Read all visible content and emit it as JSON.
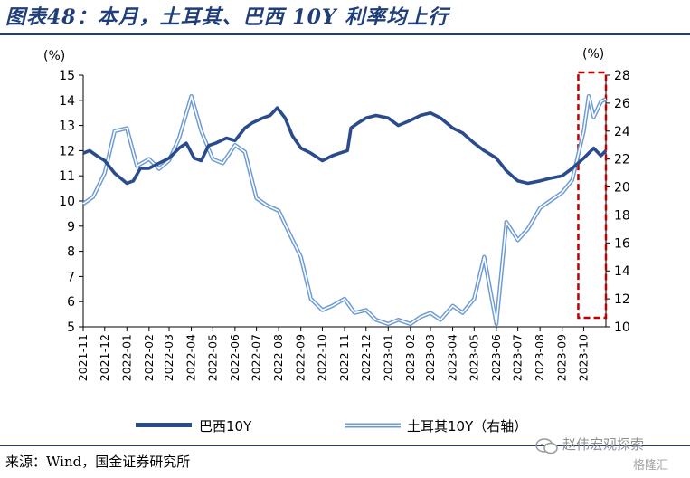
{
  "figure": {
    "title": "图表48：本月，土耳其、巴西 10Y 利率均上行",
    "source": "来源：Wind，国金证券研究所",
    "watermark": {
      "name": "赵伟宏观探索",
      "badge": "格隆汇"
    }
  },
  "colors": {
    "title": "#1f3e7a",
    "brazil": "#2a4c8c",
    "turkey_outer": "#6b9ad6",
    "turkey_inner": "#ffffff",
    "highlight_box": "#c00000",
    "axis": "#000000"
  },
  "chart_data": {
    "type": "line",
    "title": "本月，土耳其、巴西 10Y 利率均上行",
    "left_axis": {
      "unit": "(%)",
      "range": [
        5,
        15
      ],
      "ticks": [
        5,
        6,
        7,
        8,
        9,
        10,
        11,
        12,
        13,
        14,
        15
      ]
    },
    "right_axis": {
      "unit": "(%)",
      "range": [
        10,
        28
      ],
      "ticks": [
        10,
        12,
        14,
        16,
        18,
        20,
        22,
        24,
        26,
        28
      ]
    },
    "x_axis": {
      "ticks": [
        "2021-11",
        "2021-12",
        "2022-01",
        "2022-02",
        "2022-03",
        "2022-04",
        "2022-05",
        "2022-06",
        "2022-07",
        "2022-08",
        "2022-09",
        "2022-10",
        "2022-11",
        "2022-12",
        "2023-01",
        "2023-02",
        "2023-03",
        "2023-04",
        "2023-05",
        "2023-06",
        "2023-07",
        "2023-08",
        "2023-09",
        "2023-10"
      ]
    },
    "legend_position": "bottom",
    "grid": false,
    "highlight": {
      "from": "2023-10",
      "to": "2023-11",
      "style": "red dashed box"
    },
    "series": [
      {
        "name": "巴西10Y",
        "axis": "left",
        "style": "thick solid dark blue",
        "points": [
          [
            "2021-11-01",
            11.9
          ],
          [
            "2021-11-10",
            12.0
          ],
          [
            "2021-11-20",
            11.8
          ],
          [
            "2021-12-01",
            11.6
          ],
          [
            "2021-12-15",
            11.1
          ],
          [
            "2022-01-01",
            10.7
          ],
          [
            "2022-01-10",
            10.8
          ],
          [
            "2022-01-20",
            11.3
          ],
          [
            "2022-02-01",
            11.3
          ],
          [
            "2022-02-15",
            11.5
          ],
          [
            "2022-03-01",
            11.7
          ],
          [
            "2022-03-15",
            12.1
          ],
          [
            "2022-03-25",
            12.3
          ],
          [
            "2022-04-05",
            11.7
          ],
          [
            "2022-04-15",
            11.6
          ],
          [
            "2022-04-25",
            12.2
          ],
          [
            "2022-05-05",
            12.3
          ],
          [
            "2022-05-20",
            12.5
          ],
          [
            "2022-06-01",
            12.4
          ],
          [
            "2022-06-15",
            12.9
          ],
          [
            "2022-06-25",
            13.1
          ],
          [
            "2022-07-10",
            13.3
          ],
          [
            "2022-07-20",
            13.4
          ],
          [
            "2022-07-30",
            13.7
          ],
          [
            "2022-08-10",
            13.3
          ],
          [
            "2022-08-20",
            12.6
          ],
          [
            "2022-09-01",
            12.1
          ],
          [
            "2022-09-15",
            11.9
          ],
          [
            "2022-10-01",
            11.6
          ],
          [
            "2022-10-15",
            11.8
          ],
          [
            "2022-10-25",
            11.9
          ],
          [
            "2022-11-05",
            12.0
          ],
          [
            "2022-11-10",
            12.9
          ],
          [
            "2022-11-20",
            13.1
          ],
          [
            "2022-12-01",
            13.3
          ],
          [
            "2022-12-15",
            13.4
          ],
          [
            "2023-01-01",
            13.3
          ],
          [
            "2023-01-15",
            13.0
          ],
          [
            "2023-02-01",
            13.2
          ],
          [
            "2023-02-15",
            13.4
          ],
          [
            "2023-03-01",
            13.5
          ],
          [
            "2023-03-15",
            13.3
          ],
          [
            "2023-04-01",
            12.9
          ],
          [
            "2023-04-15",
            12.7
          ],
          [
            "2023-05-01",
            12.3
          ],
          [
            "2023-05-15",
            12.0
          ],
          [
            "2023-06-01",
            11.7
          ],
          [
            "2023-06-15",
            11.2
          ],
          [
            "2023-07-01",
            10.8
          ],
          [
            "2023-07-15",
            10.7
          ],
          [
            "2023-08-01",
            10.8
          ],
          [
            "2023-08-15",
            10.9
          ],
          [
            "2023-09-01",
            11.0
          ],
          [
            "2023-09-15",
            11.3
          ],
          [
            "2023-10-01",
            11.7
          ],
          [
            "2023-10-15",
            12.1
          ],
          [
            "2023-10-25",
            11.8
          ],
          [
            "2023-11-01",
            12.0
          ]
        ]
      },
      {
        "name": "土耳其10Y（右轴）",
        "axis": "right",
        "style": "light blue double line",
        "points": [
          [
            "2021-11-01",
            18.8
          ],
          [
            "2021-11-15",
            19.3
          ],
          [
            "2021-12-01",
            21.0
          ],
          [
            "2021-12-15",
            24.0
          ],
          [
            "2022-01-01",
            24.2
          ],
          [
            "2022-01-15",
            21.5
          ],
          [
            "2022-02-01",
            22.0
          ],
          [
            "2022-02-15",
            21.3
          ],
          [
            "2022-03-01",
            21.9
          ],
          [
            "2022-03-15",
            23.5
          ],
          [
            "2022-04-01",
            26.5
          ],
          [
            "2022-04-15",
            24.0
          ],
          [
            "2022-05-01",
            22.0
          ],
          [
            "2022-05-15",
            21.7
          ],
          [
            "2022-06-01",
            23.0
          ],
          [
            "2022-06-15",
            22.5
          ],
          [
            "2022-07-01",
            19.2
          ],
          [
            "2022-07-15",
            18.7
          ],
          [
            "2022-08-01",
            18.3
          ],
          [
            "2022-08-15",
            16.8
          ],
          [
            "2022-09-01",
            15.0
          ],
          [
            "2022-09-15",
            12.0
          ],
          [
            "2022-10-01",
            11.2
          ],
          [
            "2022-10-15",
            11.5
          ],
          [
            "2022-11-01",
            12.0
          ],
          [
            "2022-11-15",
            11.0
          ],
          [
            "2022-12-01",
            11.2
          ],
          [
            "2022-12-15",
            10.5
          ],
          [
            "2023-01-01",
            10.2
          ],
          [
            "2023-01-15",
            10.5
          ],
          [
            "2023-02-01",
            10.2
          ],
          [
            "2023-02-15",
            10.7
          ],
          [
            "2023-03-01",
            11.0
          ],
          [
            "2023-03-15",
            10.5
          ],
          [
            "2023-04-01",
            11.5
          ],
          [
            "2023-04-15",
            11.0
          ],
          [
            "2023-05-01",
            12.0
          ],
          [
            "2023-05-15",
            15.0
          ],
          [
            "2023-06-01",
            10.2
          ],
          [
            "2023-06-15",
            17.5
          ],
          [
            "2023-07-01",
            16.2
          ],
          [
            "2023-07-15",
            17.0
          ],
          [
            "2023-08-01",
            18.5
          ],
          [
            "2023-08-15",
            19.0
          ],
          [
            "2023-09-01",
            19.6
          ],
          [
            "2023-09-15",
            20.5
          ],
          [
            "2023-10-01",
            24.0
          ],
          [
            "2023-10-08",
            26.5
          ],
          [
            "2023-10-15",
            25.0
          ],
          [
            "2023-10-25",
            26.1
          ],
          [
            "2023-11-01",
            26.3
          ]
        ]
      }
    ]
  }
}
